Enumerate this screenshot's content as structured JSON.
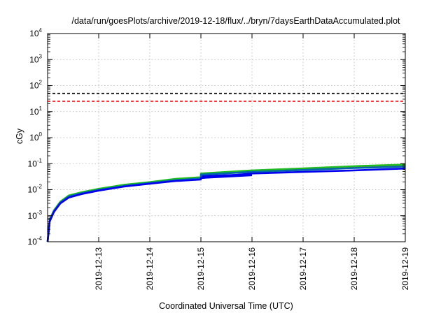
{
  "chart_data": {
    "type": "line",
    "title": "/data/run/goesPlots/archive/2019-12-18/flux/../bryn/7daysEarthDataAccumulated.plot",
    "xlabel": "Coordinated Universal Time (UTC)",
    "ylabel": "cGy",
    "yscale": "log",
    "ylim": [
      0.0001,
      10000
    ],
    "xlim": [
      "2019-12-12",
      "2019-12-19"
    ],
    "grid": true,
    "x_ticks": [
      "2019-12-13",
      "2019-12-14",
      "2019-12-15",
      "2019-12-16",
      "2019-12-17",
      "2019-12-18",
      "2019-12-19"
    ],
    "y_ticks": [
      {
        "value": 0.0001,
        "base": "10",
        "exp": "-4"
      },
      {
        "value": 0.001,
        "base": "10",
        "exp": "-3"
      },
      {
        "value": 0.01,
        "base": "10",
        "exp": "-2"
      },
      {
        "value": 0.1,
        "base": "10",
        "exp": "-1"
      },
      {
        "value": 1,
        "base": "10",
        "exp": "0"
      },
      {
        "value": 10,
        "base": "10",
        "exp": "1"
      },
      {
        "value": 100,
        "base": "10",
        "exp": "2"
      },
      {
        "value": 1000,
        "base": "10",
        "exp": "3"
      },
      {
        "value": 10000,
        "base": "10",
        "exp": "4"
      }
    ],
    "reference_lines": [
      {
        "y": 50,
        "color": "#000000",
        "style": "dashed"
      },
      {
        "y": 25,
        "color": "#ff0000",
        "style": "dashed"
      }
    ],
    "series": [
      {
        "color": "#ff6600",
        "points": [
          [
            "2019-12-12 00:00",
            0.0001
          ],
          [
            "2019-12-12 01:00",
            0.0007
          ],
          [
            "2019-12-12 03:00",
            0.0016
          ],
          [
            "2019-12-12 06:00",
            0.0034
          ],
          [
            "2019-12-12 10:00",
            0.0058
          ],
          [
            "2019-12-12 16:00",
            0.0078
          ],
          [
            "2019-12-13 00:00",
            0.0105
          ],
          [
            "2019-12-13 12:00",
            0.015
          ],
          [
            "2019-12-14 00:00",
            0.019
          ],
          [
            "2019-12-14 12:00",
            0.025
          ],
          [
            "2019-12-15 00:00",
            0.029
          ],
          [
            "2019-12-15 00:01",
            0.04
          ],
          [
            "2019-12-16 00:00",
            0.052
          ],
          [
            "2019-12-17 00:00",
            0.063
          ],
          [
            "2019-12-18 00:00",
            0.076
          ],
          [
            "2019-12-19 00:00",
            0.088
          ]
        ]
      },
      {
        "color": "#22bb22",
        "points": [
          [
            "2019-12-12 00:00",
            0.0001
          ],
          [
            "2019-12-12 01:00",
            0.0007
          ],
          [
            "2019-12-12 03:00",
            0.0016
          ],
          [
            "2019-12-12 06:00",
            0.0035
          ],
          [
            "2019-12-12 10:00",
            0.006
          ],
          [
            "2019-12-12 16:00",
            0.008
          ],
          [
            "2019-12-13 00:00",
            0.0108
          ],
          [
            "2019-12-13 12:00",
            0.0155
          ],
          [
            "2019-12-14 00:00",
            0.0195
          ],
          [
            "2019-12-14 12:00",
            0.026
          ],
          [
            "2019-12-15 00:00",
            0.03
          ],
          [
            "2019-12-15 00:01",
            0.042
          ],
          [
            "2019-12-16 00:00",
            0.055
          ],
          [
            "2019-12-17 00:00",
            0.066
          ],
          [
            "2019-12-18 00:00",
            0.08
          ],
          [
            "2019-12-19 00:00",
            0.092
          ]
        ]
      },
      {
        "color": "#0066aa",
        "points": [
          [
            "2019-12-12 00:00",
            0.0001
          ],
          [
            "2019-12-12 01:00",
            0.00065
          ],
          [
            "2019-12-12 03:00",
            0.0015
          ],
          [
            "2019-12-12 06:00",
            0.0032
          ],
          [
            "2019-12-12 10:00",
            0.0055
          ],
          [
            "2019-12-12 16:00",
            0.0073
          ],
          [
            "2019-12-13 00:00",
            0.0098
          ],
          [
            "2019-12-13 12:00",
            0.014
          ],
          [
            "2019-12-14 00:00",
            0.018
          ],
          [
            "2019-12-14 12:00",
            0.023
          ],
          [
            "2019-12-15 00:00",
            0.027
          ],
          [
            "2019-12-15 00:01",
            0.038
          ],
          [
            "2019-12-16 00:00",
            0.048
          ],
          [
            "2019-12-17 00:00",
            0.057
          ],
          [
            "2019-12-18 00:00",
            0.068
          ],
          [
            "2019-12-19 00:00",
            0.078
          ]
        ]
      },
      {
        "color": "#0000ee",
        "points": [
          [
            "2019-12-12 00:00",
            0.0001
          ],
          [
            "2019-12-12 01:00",
            0.0006
          ],
          [
            "2019-12-12 03:00",
            0.0014
          ],
          [
            "2019-12-12 06:00",
            0.003
          ],
          [
            "2019-12-12 10:00",
            0.005
          ],
          [
            "2019-12-12 16:00",
            0.0068
          ],
          [
            "2019-12-13 00:00",
            0.0092
          ],
          [
            "2019-12-13 12:00",
            0.0132
          ],
          [
            "2019-12-14 00:00",
            0.017
          ],
          [
            "2019-12-14 12:00",
            0.0215
          ],
          [
            "2019-12-15 00:00",
            0.0245
          ],
          [
            "2019-12-15 00:01",
            0.028
          ],
          [
            "2019-12-16 00:00",
            0.042
          ],
          [
            "2019-12-17 00:00",
            0.048
          ],
          [
            "2019-12-18 00:00",
            0.055
          ],
          [
            "2019-12-19 00:00",
            0.065
          ]
        ]
      }
    ],
    "bands": [
      {
        "color": "#0000ee",
        "from": "2019-12-15 00:00",
        "to": "2019-12-16 00:00",
        "y_low_start": 0.026,
        "y_low_end": 0.033,
        "y_high_start": 0.036,
        "y_high_end": 0.042
      }
    ]
  }
}
